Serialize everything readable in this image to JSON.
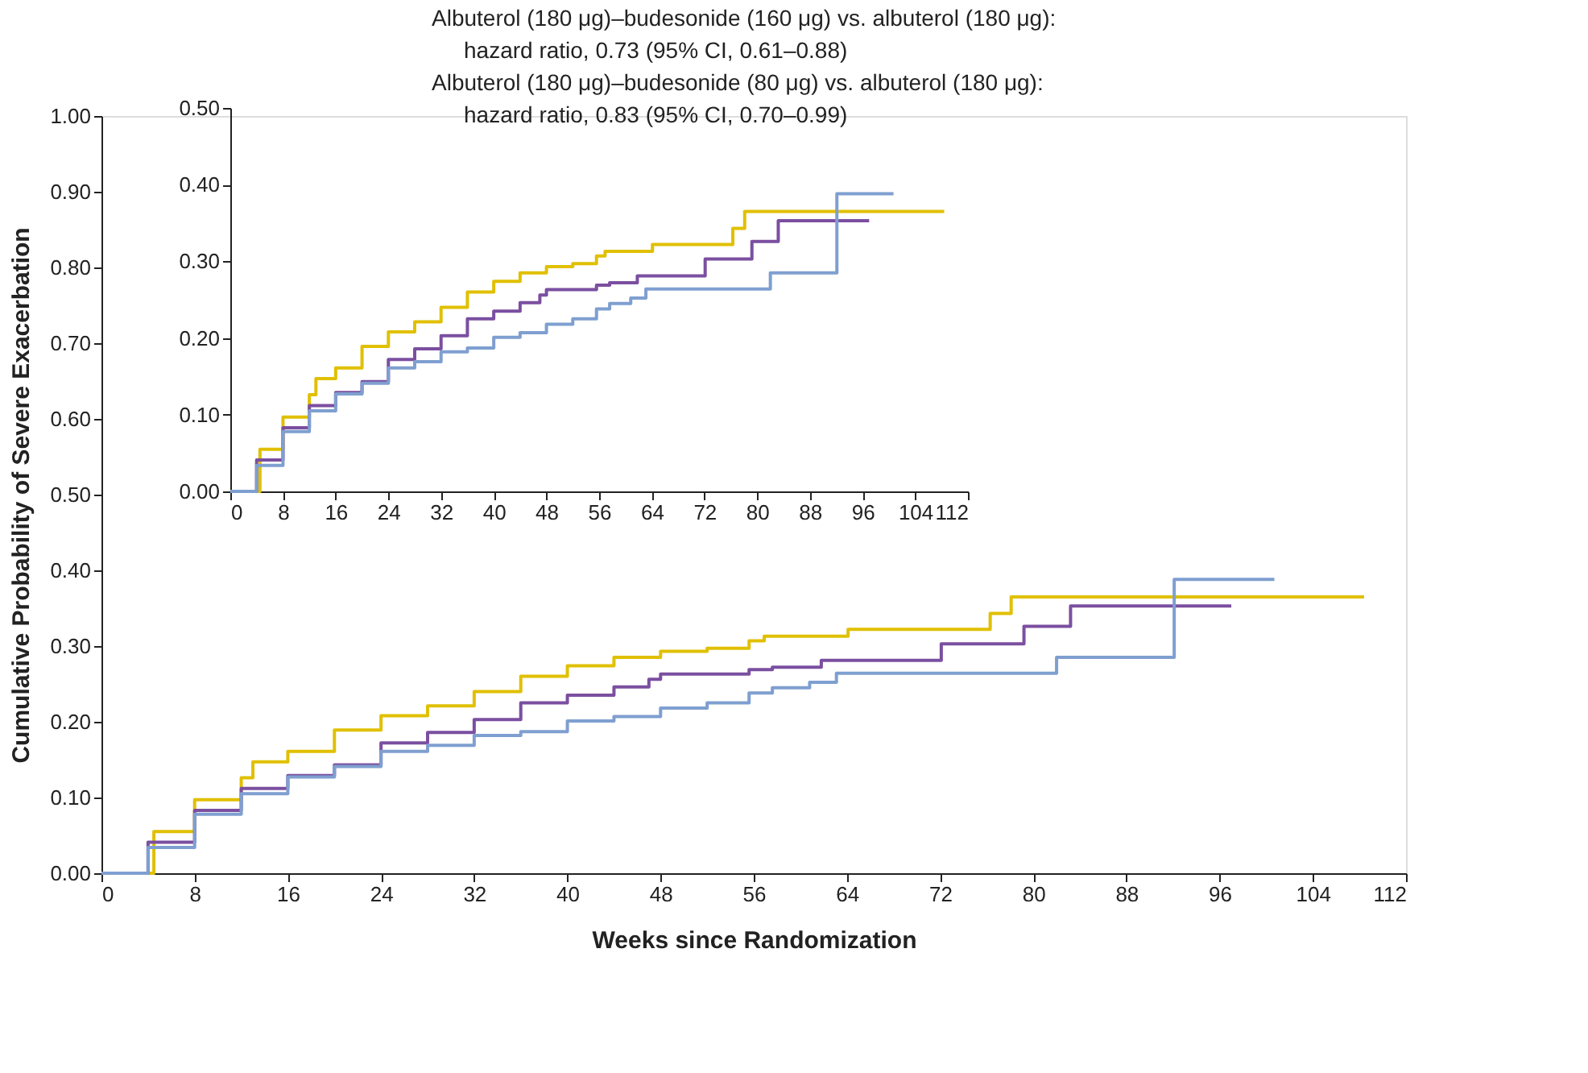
{
  "chart_data": [
    {
      "type": "step",
      "xlabel": "Weeks since Randomization",
      "ylabel": "Cumulative Probability of Severe Exacerbation",
      "annotations": [
        "Albuterol (180 μg)–budesonide (160 μg) vs. albuterol (180 μg):",
        "hazard ratio, 0.73 (95% CI, 0.61–0.88)",
        "Albuterol (180 μg)–budesonide (80 μg) vs. albuterol (180 μg):",
        "hazard ratio, 0.83 (95% CI, 0.70–0.99)"
      ],
      "xlim": [
        0,
        112
      ],
      "ylim": [
        0,
        1
      ],
      "xticks": [
        0,
        8,
        16,
        24,
        32,
        40,
        48,
        56,
        64,
        72,
        80,
        88,
        96,
        104,
        112
      ],
      "yticks": [
        {
          "value": 0,
          "label": "0.00"
        },
        {
          "value": 0.1,
          "label": "0.10"
        },
        {
          "value": 0.2,
          "label": "0.20"
        },
        {
          "value": 0.3,
          "label": "0.30"
        },
        {
          "value": 0.4,
          "label": "0.40"
        },
        {
          "value": 0.5,
          "label": "0.50"
        },
        {
          "value": 0.6,
          "label": "0.60"
        },
        {
          "value": 0.7,
          "label": "0.70"
        },
        {
          "value": 0.8,
          "label": "0.80"
        },
        {
          "value": 0.9,
          "label": "0.90"
        },
        {
          "value": 1,
          "label": "1.00"
        }
      ],
      "grid": false,
      "legend": false,
      "marker": "none",
      "line_style": "solid",
      "series": [
        {
          "color": "#e0c000",
          "x": [
            0,
            4.5,
            8,
            12,
            13,
            16,
            20,
            24,
            28,
            32,
            36,
            40,
            44,
            48,
            52,
            55.6,
            56.9,
            64.1,
            76.3,
            78.1,
            108.4
          ],
          "values": [
            0,
            0.055,
            0.097,
            0.126,
            0.147,
            0.161,
            0.189,
            0.208,
            0.221,
            0.24,
            0.26,
            0.274,
            0.285,
            0.293,
            0.297,
            0.307,
            0.313,
            0.322,
            0.343,
            0.365,
            0.365
          ]
        },
        {
          "color": "#7b4fa0",
          "x": [
            0,
            4,
            8,
            12,
            16,
            20,
            24,
            28,
            32,
            36,
            40,
            44,
            47,
            48,
            55.6,
            57.6,
            61.8,
            72.1,
            79.2,
            83.2,
            97
          ],
          "values": [
            0,
            0.041,
            0.083,
            0.112,
            0.129,
            0.143,
            0.172,
            0.186,
            0.203,
            0.225,
            0.235,
            0.246,
            0.256,
            0.263,
            0.269,
            0.272,
            0.281,
            0.303,
            0.326,
            0.353,
            0.353
          ]
        },
        {
          "color": "#7f9fd0",
          "x": [
            0,
            4,
            8,
            12,
            16,
            20,
            24,
            28,
            32,
            36,
            40,
            44,
            48,
            52,
            55.6,
            57.6,
            60.8,
            63.1,
            82,
            92.1,
            100.7
          ],
          "values": [
            0,
            0.034,
            0.078,
            0.105,
            0.127,
            0.141,
            0.161,
            0.169,
            0.182,
            0.187,
            0.201,
            0.207,
            0.218,
            0.225,
            0.238,
            0.245,
            0.252,
            0.264,
            0.285,
            0.388,
            0.388
          ]
        }
      ]
    },
    {
      "type": "step",
      "xlim": [
        0,
        112
      ],
      "ylim": [
        0,
        0.5
      ],
      "xticks": [
        0,
        8,
        16,
        24,
        32,
        40,
        48,
        56,
        64,
        72,
        80,
        88,
        96,
        104,
        112
      ],
      "yticks": [
        {
          "value": 0,
          "label": "0.00"
        },
        {
          "value": 0.1,
          "label": "0.10"
        },
        {
          "value": 0.2,
          "label": "0.20"
        },
        {
          "value": 0.3,
          "label": "0.30"
        },
        {
          "value": 0.4,
          "label": "0.40"
        },
        {
          "value": 0.5,
          "label": "0.50"
        }
      ],
      "grid": false,
      "legend": false,
      "marker": "none",
      "line_style": "solid",
      "series": [
        {
          "color": "#e0c000",
          "x": [
            0,
            4.5,
            8,
            12,
            13,
            16,
            20,
            24,
            28,
            32,
            36,
            40,
            44,
            48,
            52,
            55.6,
            56.9,
            64.1,
            76.3,
            78.1,
            108.4
          ],
          "values": [
            0,
            0.055,
            0.097,
            0.126,
            0.147,
            0.161,
            0.189,
            0.208,
            0.221,
            0.24,
            0.26,
            0.274,
            0.285,
            0.293,
            0.297,
            0.307,
            0.313,
            0.322,
            0.343,
            0.365,
            0.365
          ]
        },
        {
          "color": "#7b4fa0",
          "x": [
            0,
            4,
            8,
            12,
            16,
            20,
            24,
            28,
            32,
            36,
            40,
            44,
            47,
            48,
            55.6,
            57.6,
            61.8,
            72.1,
            79.2,
            83.2,
            97
          ],
          "values": [
            0,
            0.041,
            0.083,
            0.112,
            0.129,
            0.143,
            0.172,
            0.186,
            0.203,
            0.225,
            0.235,
            0.246,
            0.256,
            0.263,
            0.269,
            0.272,
            0.281,
            0.303,
            0.326,
            0.353,
            0.353
          ]
        },
        {
          "color": "#7f9fd0",
          "x": [
            0,
            4,
            8,
            12,
            16,
            20,
            24,
            28,
            32,
            36,
            40,
            44,
            48,
            52,
            55.6,
            57.6,
            60.8,
            63.1,
            82,
            92.1,
            100.7
          ],
          "values": [
            0,
            0.034,
            0.078,
            0.105,
            0.127,
            0.141,
            0.161,
            0.169,
            0.182,
            0.187,
            0.201,
            0.207,
            0.218,
            0.225,
            0.238,
            0.245,
            0.252,
            0.264,
            0.285,
            0.388,
            0.388
          ]
        }
      ]
    }
  ]
}
